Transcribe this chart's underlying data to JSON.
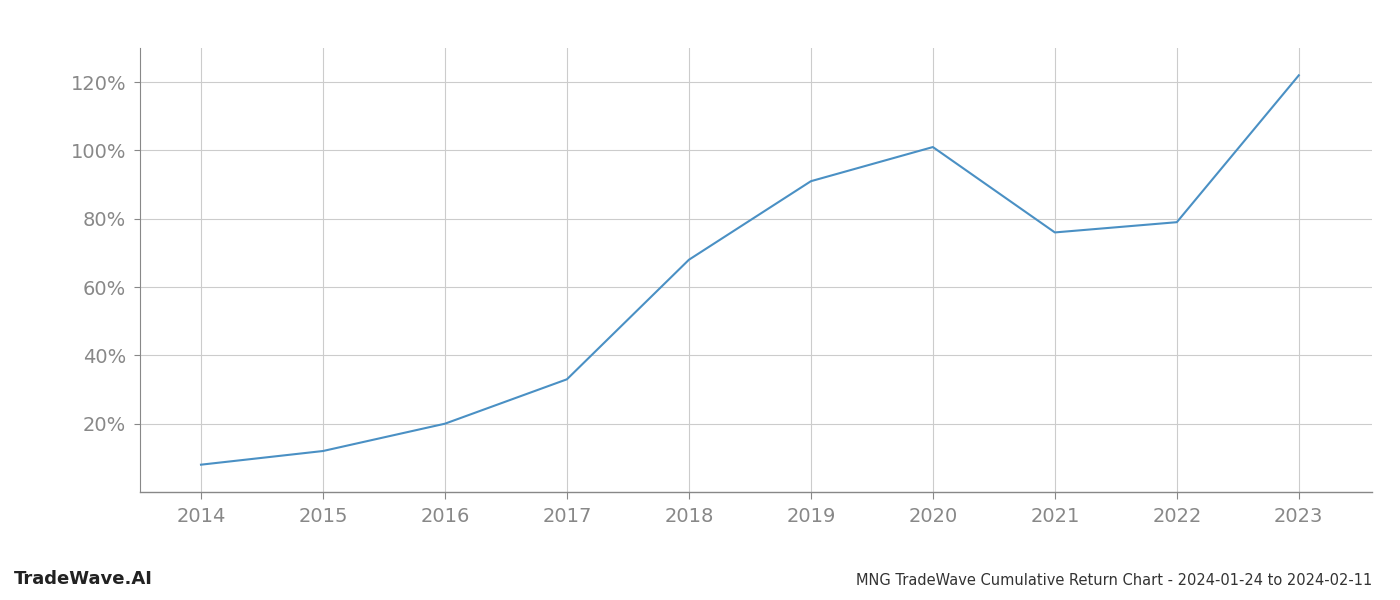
{
  "x_values": [
    2014,
    2015,
    2016,
    2017,
    2018,
    2019,
    2020,
    2021,
    2022,
    2023
  ],
  "y_values": [
    8,
    12,
    20,
    33,
    68,
    91,
    101,
    76,
    79,
    122
  ],
  "line_color": "#4a90c4",
  "line_width": 1.5,
  "title": "MNG TradeWave Cumulative Return Chart - 2024-01-24 to 2024-02-11",
  "watermark": "TradeWave.AI",
  "x_ticks": [
    2014,
    2015,
    2016,
    2017,
    2018,
    2019,
    2020,
    2021,
    2022,
    2023
  ],
  "y_ticks": [
    20,
    40,
    60,
    80,
    100,
    120
  ],
  "ylim": [
    0,
    130
  ],
  "xlim": [
    2013.5,
    2023.6
  ],
  "background_color": "#ffffff",
  "grid_color": "#cccccc",
  "tick_color": "#888888",
  "title_color": "#333333",
  "watermark_color": "#222222",
  "title_fontsize": 10.5,
  "tick_fontsize": 14,
  "watermark_fontsize": 13
}
